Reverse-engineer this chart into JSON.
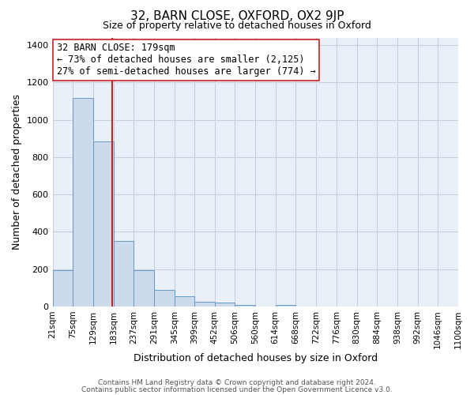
{
  "title": "32, BARN CLOSE, OXFORD, OX2 9JP",
  "subtitle": "Size of property relative to detached houses in Oxford",
  "xlabel": "Distribution of detached houses by size in Oxford",
  "ylabel": "Number of detached properties",
  "bar_color": "#ccdaec",
  "bar_edge_color": "#6699cc",
  "grid_color": "#c5d0e0",
  "bg_color": "#eaf0f8",
  "vline_x": 179,
  "vline_color": "#cc2222",
  "bin_edges": [
    21,
    75,
    129,
    183,
    237,
    291,
    345,
    399,
    452,
    506,
    560,
    614,
    668,
    722,
    776,
    830,
    884,
    938,
    992,
    1046,
    1100
  ],
  "bin_labels": [
    "21sqm",
    "75sqm",
    "129sqm",
    "183sqm",
    "237sqm",
    "291sqm",
    "345sqm",
    "399sqm",
    "452sqm",
    "506sqm",
    "560sqm",
    "614sqm",
    "668sqm",
    "722sqm",
    "776sqm",
    "830sqm",
    "884sqm",
    "938sqm",
    "992sqm",
    "1046sqm",
    "1100sqm"
  ],
  "bar_heights": [
    195,
    1115,
    885,
    350,
    195,
    90,
    55,
    25,
    20,
    10,
    0,
    10,
    0,
    0,
    0,
    0,
    0,
    0,
    0,
    0
  ],
  "ylim": [
    0,
    1440
  ],
  "yticks": [
    0,
    200,
    400,
    600,
    800,
    1000,
    1200,
    1400
  ],
  "annotation_line1": "32 BARN CLOSE: 179sqm",
  "annotation_line2": "← 73% of detached houses are smaller (2,125)",
  "annotation_line3": "27% of semi-detached houses are larger (774) →",
  "annotation_box_color": "#ffffff",
  "annotation_box_edge": "#cc2222",
  "footer_line1": "Contains HM Land Registry data © Crown copyright and database right 2024.",
  "footer_line2": "Contains public sector information licensed under the Open Government Licence v3.0."
}
